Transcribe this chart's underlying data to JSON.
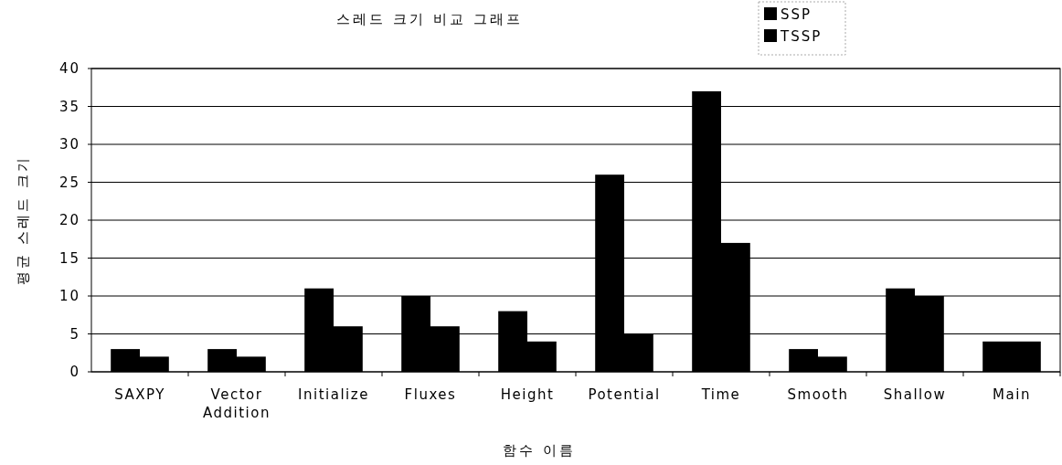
{
  "chart_data": {
    "type": "bar",
    "title": "스레드 크기 비교 그래프",
    "xlabel": "함수 이름",
    "ylabel": "평균 스레드 크기",
    "categories": [
      "SAXPY",
      "Vector Addition",
      "Initialize",
      "Fluxes",
      "Height",
      "Potential",
      "Time",
      "Smooth",
      "Shallow",
      "Main"
    ],
    "series": [
      {
        "name": "SSP",
        "color": "#000000",
        "values": [
          3,
          3,
          11,
          10,
          8,
          26,
          37,
          3,
          11,
          4
        ]
      },
      {
        "name": "TSSP",
        "color": "#000000",
        "values": [
          2,
          2,
          6,
          6,
          4,
          5,
          17,
          2,
          10,
          4
        ]
      }
    ],
    "ylim": [
      0,
      40
    ],
    "yticks": [
      0,
      5,
      10,
      15,
      20,
      25,
      30,
      35,
      40
    ],
    "grid": "y",
    "legend": "top right"
  }
}
